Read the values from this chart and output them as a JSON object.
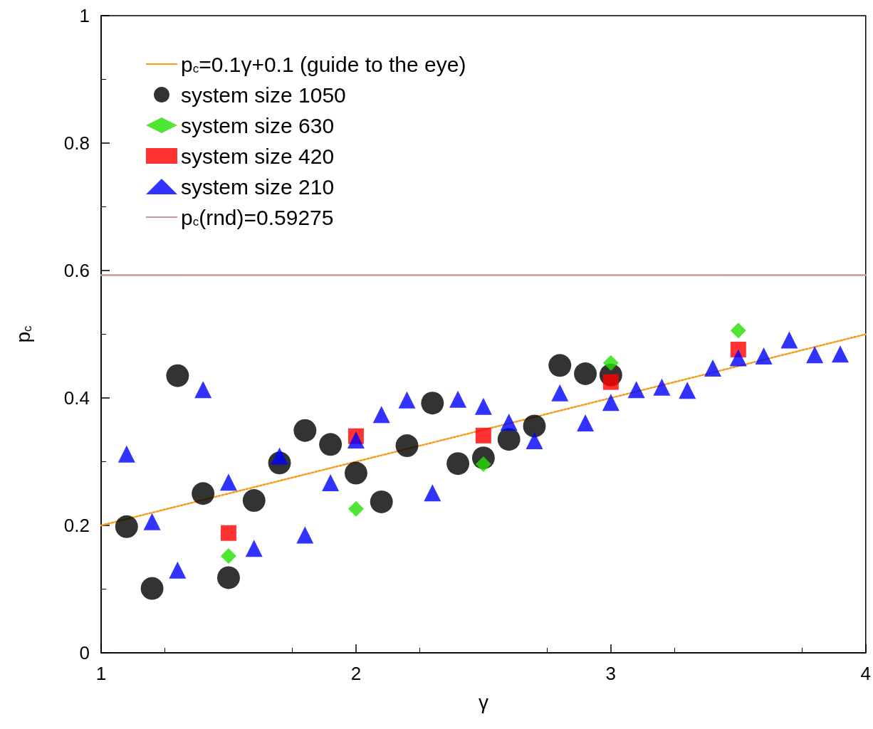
{
  "chart_data": {
    "type": "scatter",
    "xlabel": "γ",
    "ylabel": "p$_{c}$",
    "xlim": [
      1,
      4
    ],
    "xticks": [
      1,
      2,
      3,
      4
    ],
    "ylim": [
      0,
      1
    ],
    "yticks": [
      0,
      0.2,
      0.4,
      0.6,
      0.8,
      1
    ],
    "grid": false,
    "legend": "top left",
    "series": [
      {
        "name": "p$_{c}$=0.1γ+0.1 (guide to the eye)",
        "type": "line",
        "line_style": "dotted",
        "marker": "none",
        "color": "#f39c1f",
        "x": [
          1,
          4
        ],
        "values": [
          0.2,
          0.5
        ]
      },
      {
        "name": "system size 1050",
        "marker": "circle",
        "color": "#000000",
        "x": [
          1.1,
          1.2,
          1.3,
          1.4,
          1.5,
          1.6,
          1.7,
          1.8,
          1.9,
          2.0,
          2.1,
          2.2,
          2.3,
          2.4,
          2.5,
          2.6,
          2.7,
          2.8,
          2.9,
          3.0
        ],
        "values": [
          0.198,
          0.101,
          0.435,
          0.25,
          0.118,
          0.239,
          0.298,
          0.349,
          0.327,
          0.282,
          0.237,
          0.325,
          0.392,
          0.297,
          0.306,
          0.335,
          0.356,
          0.451,
          0.438,
          0.436
        ]
      },
      {
        "name": "system size 630",
        "marker": "diamond",
        "color": "#22e000",
        "x": [
          1.5,
          2.0,
          2.5,
          3.0,
          3.5
        ],
        "values": [
          0.152,
          0.226,
          0.296,
          0.455,
          0.506
        ]
      },
      {
        "name": "system size 420",
        "marker": "square",
        "color": "#ff0000",
        "x": [
          1.5,
          2.0,
          2.5,
          3.0,
          3.5
        ],
        "values": [
          0.188,
          0.34,
          0.341,
          0.425,
          0.476
        ]
      },
      {
        "name": "system size 210",
        "marker": "triangle",
        "color": "#0000ff",
        "x": [
          1.1,
          1.2,
          1.3,
          1.4,
          1.5,
          1.6,
          1.7,
          1.8,
          1.9,
          2.0,
          2.1,
          2.2,
          2.3,
          2.4,
          2.5,
          2.6,
          2.7,
          2.8,
          2.9,
          3.0,
          3.1,
          3.2,
          3.3,
          3.4,
          3.5,
          3.6,
          3.7,
          3.8,
          3.9
        ],
        "values": [
          0.312,
          0.206,
          0.13,
          0.413,
          0.268,
          0.164,
          0.309,
          0.185,
          0.267,
          0.334,
          0.374,
          0.397,
          0.251,
          0.398,
          0.387,
          0.362,
          0.333,
          0.408,
          0.361,
          0.393,
          0.413,
          0.417,
          0.412,
          0.447,
          0.463,
          0.466,
          0.491,
          0.468,
          0.469
        ]
      },
      {
        "name": "p$_{c}$(rnd)=0.59275",
        "type": "line",
        "line_style": "solid",
        "marker": "none",
        "color": "#c49a9a",
        "x": [
          1,
          4
        ],
        "values": [
          0.59275,
          0.59275
        ]
      }
    ]
  }
}
